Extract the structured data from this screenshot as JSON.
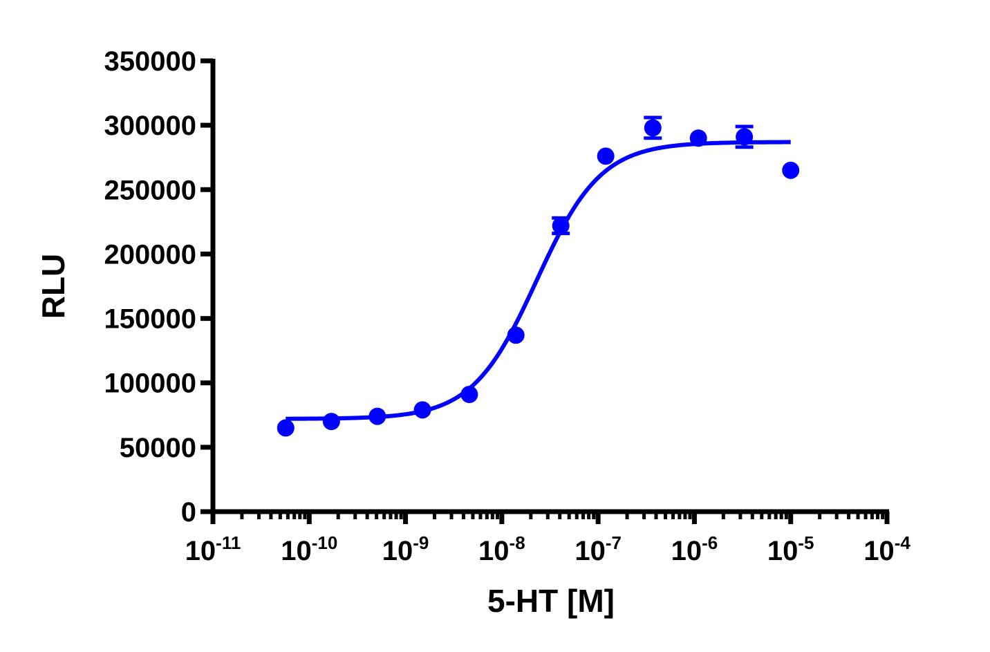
{
  "chart_data": {
    "type": "scatter",
    "xlabel": "5-HT [M]",
    "ylabel": "RLU",
    "x_scale": "log",
    "xlim": [
      1e-11,
      0.0001
    ],
    "ylim": [
      0,
      350000
    ],
    "grid": false,
    "legend": "none",
    "y_ticks": [
      0,
      50000,
      100000,
      150000,
      200000,
      250000,
      300000,
      350000
    ],
    "y_tick_labels": [
      "0",
      "50000",
      "100000",
      "150000",
      "200000",
      "250000",
      "300000",
      "350000"
    ],
    "x_ticks": [
      1e-11,
      1e-10,
      1e-09,
      1e-08,
      1e-07,
      1e-06,
      1e-05,
      0.0001
    ],
    "x_tick_base": [
      "10",
      "10",
      "10",
      "10",
      "10",
      "10",
      "10",
      "10"
    ],
    "x_tick_exponents": [
      "-11",
      "-10",
      "-9",
      "-8",
      "-7",
      "-6",
      "-5",
      "-4"
    ],
    "color": "#0000ff",
    "series": [
      {
        "x": [
          5.7e-11,
          1.7e-10,
          5.1e-10,
          1.5e-09,
          4.6e-09,
          1.4e-08,
          4.1e-08,
          1.2e-07,
          3.7e-07,
          1.1e-06,
          3.3e-06,
          1e-05
        ],
        "y": [
          65000,
          70000,
          74000,
          79000,
          91000,
          137000,
          222000,
          276000,
          298000,
          290000,
          291000,
          265000
        ],
        "error": [
          0,
          0,
          0,
          0,
          0,
          0,
          6000,
          0,
          8000,
          0,
          8000,
          0
        ]
      }
    ],
    "fit": {
      "model": "sigmoidal dose-response",
      "bottom": 72000,
      "top": 287000,
      "ec50": 2.3e-08,
      "hill": 1.3,
      "x_range": [
        5.7e-11,
        1e-05
      ]
    }
  }
}
